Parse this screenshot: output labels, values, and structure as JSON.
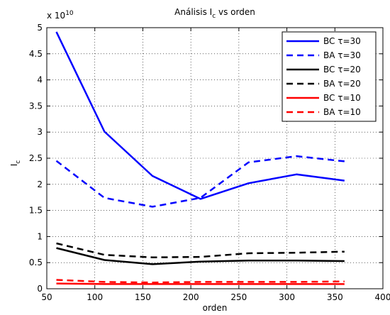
{
  "chart_data": {
    "type": "line",
    "title": {
      "main": "Análisis I",
      "sub": "c",
      "suffix": " vs orden"
    },
    "xlabel": "orden",
    "ylabel": {
      "main": "I",
      "sub": "c"
    },
    "exponent_label": {
      "base": "x 10",
      "power": "10"
    },
    "xlim": [
      50,
      400
    ],
    "ylim": [
      0,
      5
    ],
    "x_ticks": [
      "50",
      "100",
      "150",
      "200",
      "250",
      "300",
      "350",
      "400"
    ],
    "y_ticks": [
      "0",
      "0.5",
      "1",
      "1.5",
      "2",
      "2.5",
      "3",
      "3.5",
      "4",
      "4.5",
      "5"
    ],
    "grid": true,
    "legend_position": "top-right",
    "x": [
      60,
      110,
      160,
      210,
      260,
      310,
      360
    ],
    "series": [
      {
        "name": "BC τ=30",
        "color": "#0000ff",
        "dash": false,
        "values": [
          4.92,
          3.01,
          2.16,
          1.72,
          2.02,
          2.19,
          2.07
        ]
      },
      {
        "name": "BA τ=30",
        "color": "#0000ff",
        "dash": true,
        "values": [
          2.45,
          1.74,
          1.57,
          1.74,
          2.42,
          2.54,
          2.44
        ]
      },
      {
        "name": "BC τ=20",
        "color": "#000000",
        "dash": false,
        "values": [
          0.78,
          0.55,
          0.47,
          0.52,
          0.54,
          0.54,
          0.53
        ]
      },
      {
        "name": "BA τ=20",
        "color": "#000000",
        "dash": true,
        "values": [
          0.87,
          0.65,
          0.6,
          0.61,
          0.68,
          0.69,
          0.71
        ]
      },
      {
        "name": "BC τ=10",
        "color": "#ff0000",
        "dash": false,
        "values": [
          0.1,
          0.09,
          0.09,
          0.09,
          0.09,
          0.09,
          0.09
        ]
      },
      {
        "name": "BA τ=10",
        "color": "#ff0000",
        "dash": true,
        "values": [
          0.17,
          0.13,
          0.12,
          0.13,
          0.13,
          0.13,
          0.14
        ]
      }
    ]
  }
}
